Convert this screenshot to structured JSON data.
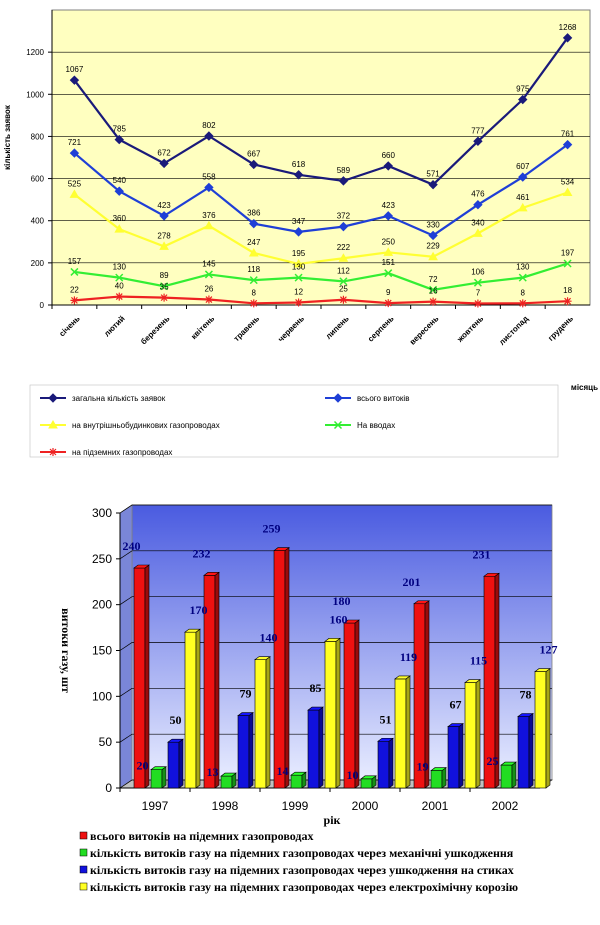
{
  "chart_data": [
    {
      "type": "line",
      "ylabel": "кількість заявок",
      "xlabel": "місяць",
      "ylim": [
        0,
        1400
      ],
      "yticks": [
        0,
        200,
        400,
        600,
        800,
        1000,
        1200
      ],
      "grid": true,
      "legend_position": "bottom",
      "categories": [
        "січень",
        "лютий",
        "березень",
        "квітень",
        "травень",
        "червень",
        "липень",
        "серпень",
        "вересень",
        "жовтень",
        "листопад",
        "грудень"
      ],
      "series": [
        {
          "name": "загальна кількість заявок",
          "color": "#1a1a7a",
          "marker": "diamond",
          "values": [
            1067,
            785,
            672,
            802,
            667,
            618,
            589,
            660,
            571,
            777,
            975,
            1268
          ]
        },
        {
          "name": "всього витоків",
          "color": "#1f3fd6",
          "marker": "diamond",
          "values": [
            721,
            540,
            423,
            558,
            386,
            347,
            372,
            423,
            330,
            476,
            607,
            761
          ]
        },
        {
          "name": "на внутрішньобудинкових газопроводах",
          "color": "#ffff33",
          "marker": "triangle",
          "values": [
            525,
            360,
            278,
            376,
            247,
            195,
            222,
            250,
            229,
            340,
            461,
            534
          ]
        },
        {
          "name": "На вводах",
          "color": "#33ee33",
          "marker": "x",
          "values": [
            157,
            130,
            89,
            145,
            118,
            130,
            112,
            151,
            72,
            106,
            130,
            197
          ]
        },
        {
          "name": "на підземних газопроводах",
          "color": "#ee2222",
          "marker": "star",
          "values": [
            22,
            40,
            35,
            26,
            8,
            12,
            25,
            9,
            16,
            7,
            8,
            18
          ]
        }
      ]
    },
    {
      "type": "bar",
      "ylabel": "витоки газу, шт",
      "xlabel": "рік",
      "ylim": [
        0,
        300
      ],
      "yticks": [
        0,
        50,
        100,
        150,
        200,
        250,
        300
      ],
      "grid": true,
      "legend_position": "bottom",
      "categories": [
        "1997",
        "1998",
        "1999",
        "2000",
        "2001",
        "2002"
      ],
      "series": [
        {
          "name": "всього витоків на підемних газопроводах",
          "color": "#ee1111",
          "values": [
            240,
            232,
            259,
            180,
            201,
            231
          ]
        },
        {
          "name": "кількість витоків газу на підемних газопроводах через механічні ушкодження",
          "color": "#22dd22",
          "values": [
            20,
            13,
            14,
            10,
            19,
            25
          ]
        },
        {
          "name": "кількість витоків газу на підемних газопроводах через ушкодження на стиках",
          "color": "#1111dd",
          "values": [
            50,
            79,
            85,
            51,
            67,
            78
          ]
        },
        {
          "name": "кількість витоків газу на підемних газопроводах через електрохімічну корозію",
          "color": "#ffff22",
          "values": [
            170,
            140,
            160,
            119,
            115,
            127
          ]
        }
      ]
    }
  ]
}
